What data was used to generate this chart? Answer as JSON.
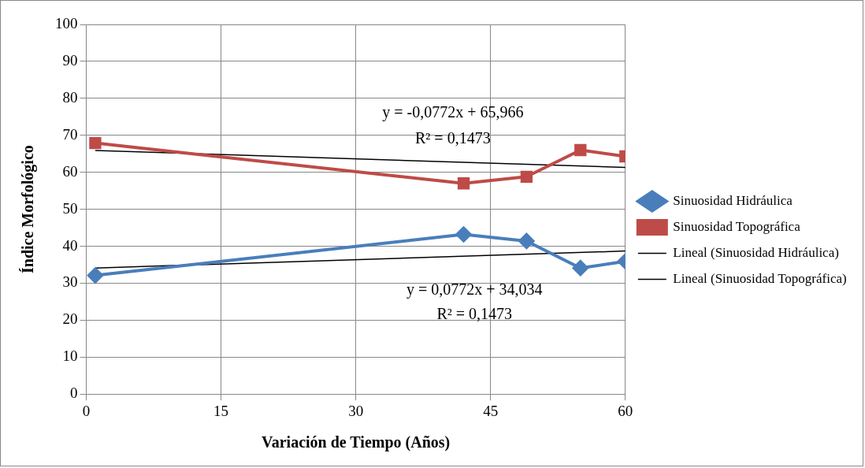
{
  "chart_data": {
    "type": "line",
    "xlabel": "Variación de Tiempo (Años)",
    "ylabel": "Índice Morfológico",
    "xlim": [
      0,
      60
    ],
    "xticks": [
      0,
      15,
      30,
      45,
      60
    ],
    "ylim": [
      0,
      100
    ],
    "yticks": [
      0,
      10,
      20,
      30,
      40,
      50,
      60,
      70,
      80,
      90,
      100
    ],
    "grid": true,
    "legend": "right",
    "series": [
      {
        "name": "Sinuosidad Hidráulica",
        "color": "#4a7ebb",
        "x": [
          1,
          42,
          49,
          55,
          60
        ],
        "values": [
          32.1,
          43.2,
          41.4,
          34.1,
          35.9
        ],
        "marker": "diamond"
      },
      {
        "name": "Sinuosidad Topográfica",
        "color": "#be4b48",
        "x": [
          1,
          42,
          49,
          55,
          60
        ],
        "values": [
          67.9,
          57,
          58.8,
          66,
          64.3
        ],
        "marker": "square"
      },
      {
        "name": "Lineal (Sinuosidad Hidráulica)",
        "color": "#000000",
        "x": [
          1,
          60
        ],
        "values": [
          34.1,
          38.7
        ],
        "marker": "none"
      },
      {
        "name": "Lineal (Sinuosidad Topográfica)",
        "color": "#000000",
        "x": [
          1,
          60
        ],
        "values": [
          65.9,
          61.3
        ],
        "marker": "none"
      }
    ],
    "annotations": [
      "y = -0,0772x + 65,966",
      "R² = 0,1473",
      "y = 0,0772x + 34,034",
      "R² = 0,1473"
    ]
  }
}
